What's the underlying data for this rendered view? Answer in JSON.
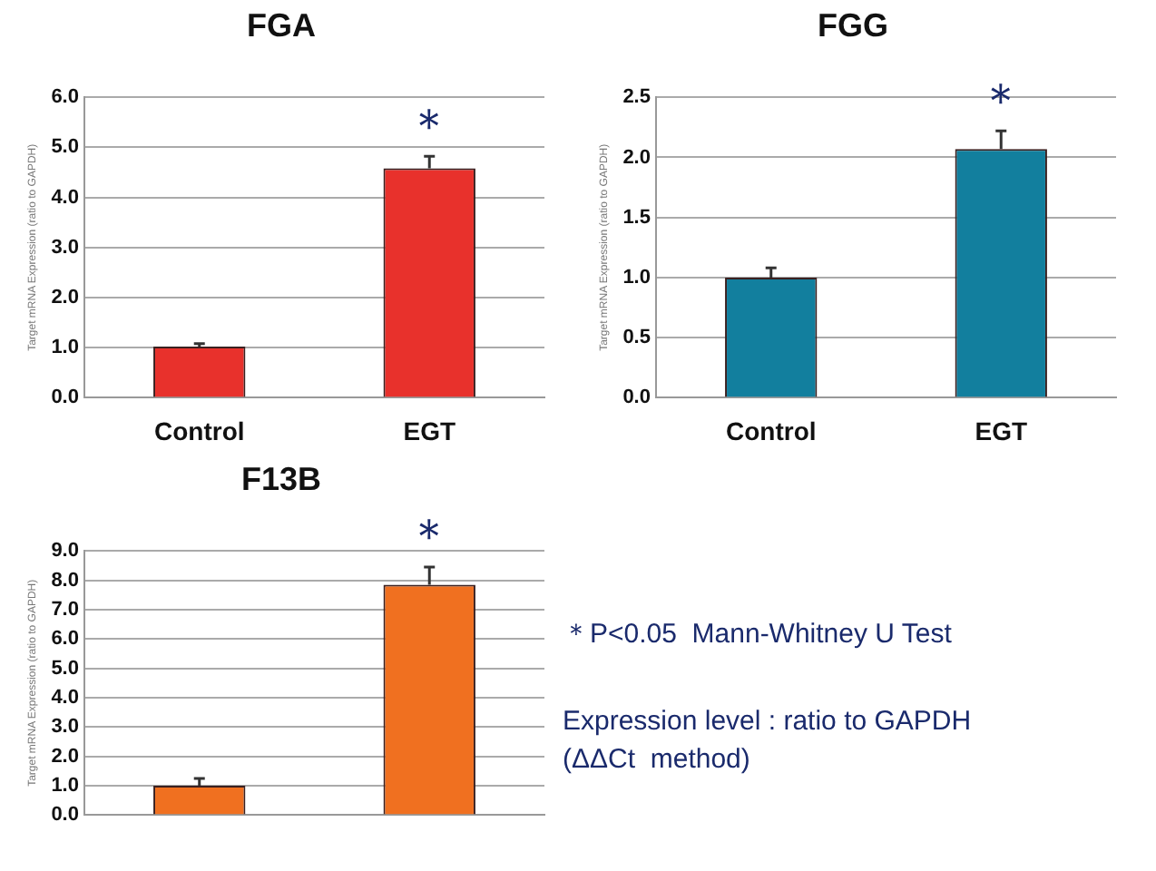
{
  "chart_data": [
    {
      "type": "bar",
      "title": "FGA",
      "ylabel": "Target mRNA Expression (ratio to GAPDH)",
      "categories": [
        "Control",
        "EGT"
      ],
      "values": [
        1.02,
        4.58
      ],
      "errors": [
        [
          1.02,
          1.08
        ],
        [
          4.58,
          4.82
        ]
      ],
      "color": "#e8312c",
      "ylim": [
        0,
        6
      ],
      "yticks": [
        {
          "value": 0,
          "label": "0.0"
        },
        {
          "value": 1,
          "label": "1.0"
        },
        {
          "value": 2,
          "label": "2.0"
        },
        {
          "value": 3,
          "label": "3.0"
        },
        {
          "value": 4,
          "label": "4.0"
        },
        {
          "value": 5,
          "label": "5.0"
        },
        {
          "value": 6,
          "label": "6.0"
        }
      ],
      "grid": "y",
      "annotations": [
        "＊"
      ]
    },
    {
      "type": "bar",
      "title": "FGG",
      "ylabel": "Target mRNA Expression (ratio to GAPDH)",
      "categories": [
        "Control",
        "EGT"
      ],
      "values": [
        1.0,
        2.07
      ],
      "errors": [
        [
          1.0,
          1.08
        ],
        [
          2.07,
          2.22
        ]
      ],
      "color": "#127f9e",
      "ylim": [
        0,
        2.5
      ],
      "yticks": [
        {
          "value": 0,
          "label": "0.0"
        },
        {
          "value": 0.5,
          "label": "0.5"
        },
        {
          "value": 1,
          "label": "1.0"
        },
        {
          "value": 1.5,
          "label": "1.5"
        },
        {
          "value": 2,
          "label": "2.0"
        },
        {
          "value": 2.5,
          "label": "2.5"
        }
      ],
      "grid": "y",
      "annotations": [
        "＊"
      ]
    },
    {
      "type": "bar",
      "title": "F13B",
      "ylabel": "Target mRNA Expression (ratio to GAPDH)",
      "categories": [
        null,
        null
      ],
      "values": [
        1.0,
        7.85
      ],
      "errors": [
        [
          1.0,
          1.25
        ],
        [
          7.85,
          8.45
        ]
      ],
      "color": "#f07020",
      "ylim": [
        0,
        9
      ],
      "yticks": [
        {
          "value": 0,
          "label": "0.0"
        },
        {
          "value": 1,
          "label": "1.0"
        },
        {
          "value": 2,
          "label": "2.0"
        },
        {
          "value": 3,
          "label": "3.0"
        },
        {
          "value": 4,
          "label": "4.0"
        },
        {
          "value": 5,
          "label": "5.0"
        },
        {
          "value": 6,
          "label": "6.0"
        },
        {
          "value": 7,
          "label": "7.0"
        },
        {
          "value": 8,
          "label": "8.0"
        },
        {
          "value": 9,
          "label": "9.0"
        }
      ],
      "grid": "y",
      "annotations": [
        "＊"
      ]
    },
    {
      "type": "other",
      "annotations": [
        "＊P<0.05  Mann-Whitney U Test",
        "Expression level : ratio to GAPDH",
        "(ΔΔCt  method)"
      ]
    }
  ]
}
